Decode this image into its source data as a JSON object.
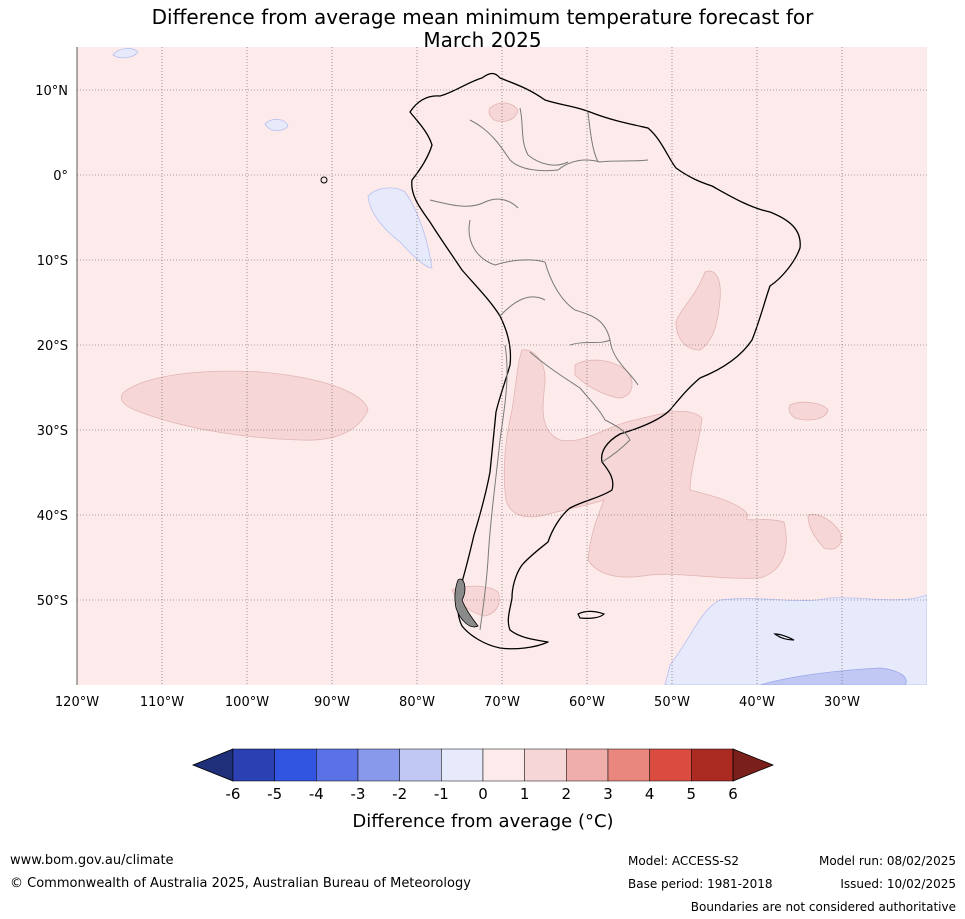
{
  "title": {
    "line1": "Difference from average mean minimum temperature forecast for",
    "line2": "March 2025"
  },
  "map": {
    "lat_labels": [
      "10°N",
      "0°",
      "10°S",
      "20°S",
      "30°S",
      "40°S",
      "50°S"
    ],
    "lon_labels": [
      "120°W",
      "110°W",
      "100°W",
      "90°W",
      "80°W",
      "70°W",
      "60°W",
      "50°W",
      "40°W",
      "30°W"
    ],
    "region": "South America",
    "background_color": "#fcebea"
  },
  "colorbar": {
    "ticks": [
      "-6",
      "-5",
      "-4",
      "-3",
      "-2",
      "-1",
      "0",
      "1",
      "2",
      "3",
      "4",
      "5",
      "6"
    ],
    "colors": [
      "#1f2f7a",
      "#2a40b3",
      "#3155e0",
      "#5a72e6",
      "#8899ec",
      "#c0c8f3",
      "#e7eafb",
      "#fcebea",
      "#f6d6d6",
      "#efaeaa",
      "#e9877f",
      "#da4c3f",
      "#ab2b22",
      "#7a1f1a"
    ],
    "label": "Difference from average (°C)"
  },
  "footer": {
    "website": "www.bom.gov.au/climate",
    "copyright": "© Commonwealth of Australia 2025, Australian Bureau of Meteorology",
    "model": "Model: ACCESS-S2",
    "base_period": "Base period: 1981-2018",
    "model_run": "Model run: 08/02/2025",
    "issued": "Issued: 10/02/2025",
    "disclaimer": "Boundaries are not considered authoritative"
  }
}
